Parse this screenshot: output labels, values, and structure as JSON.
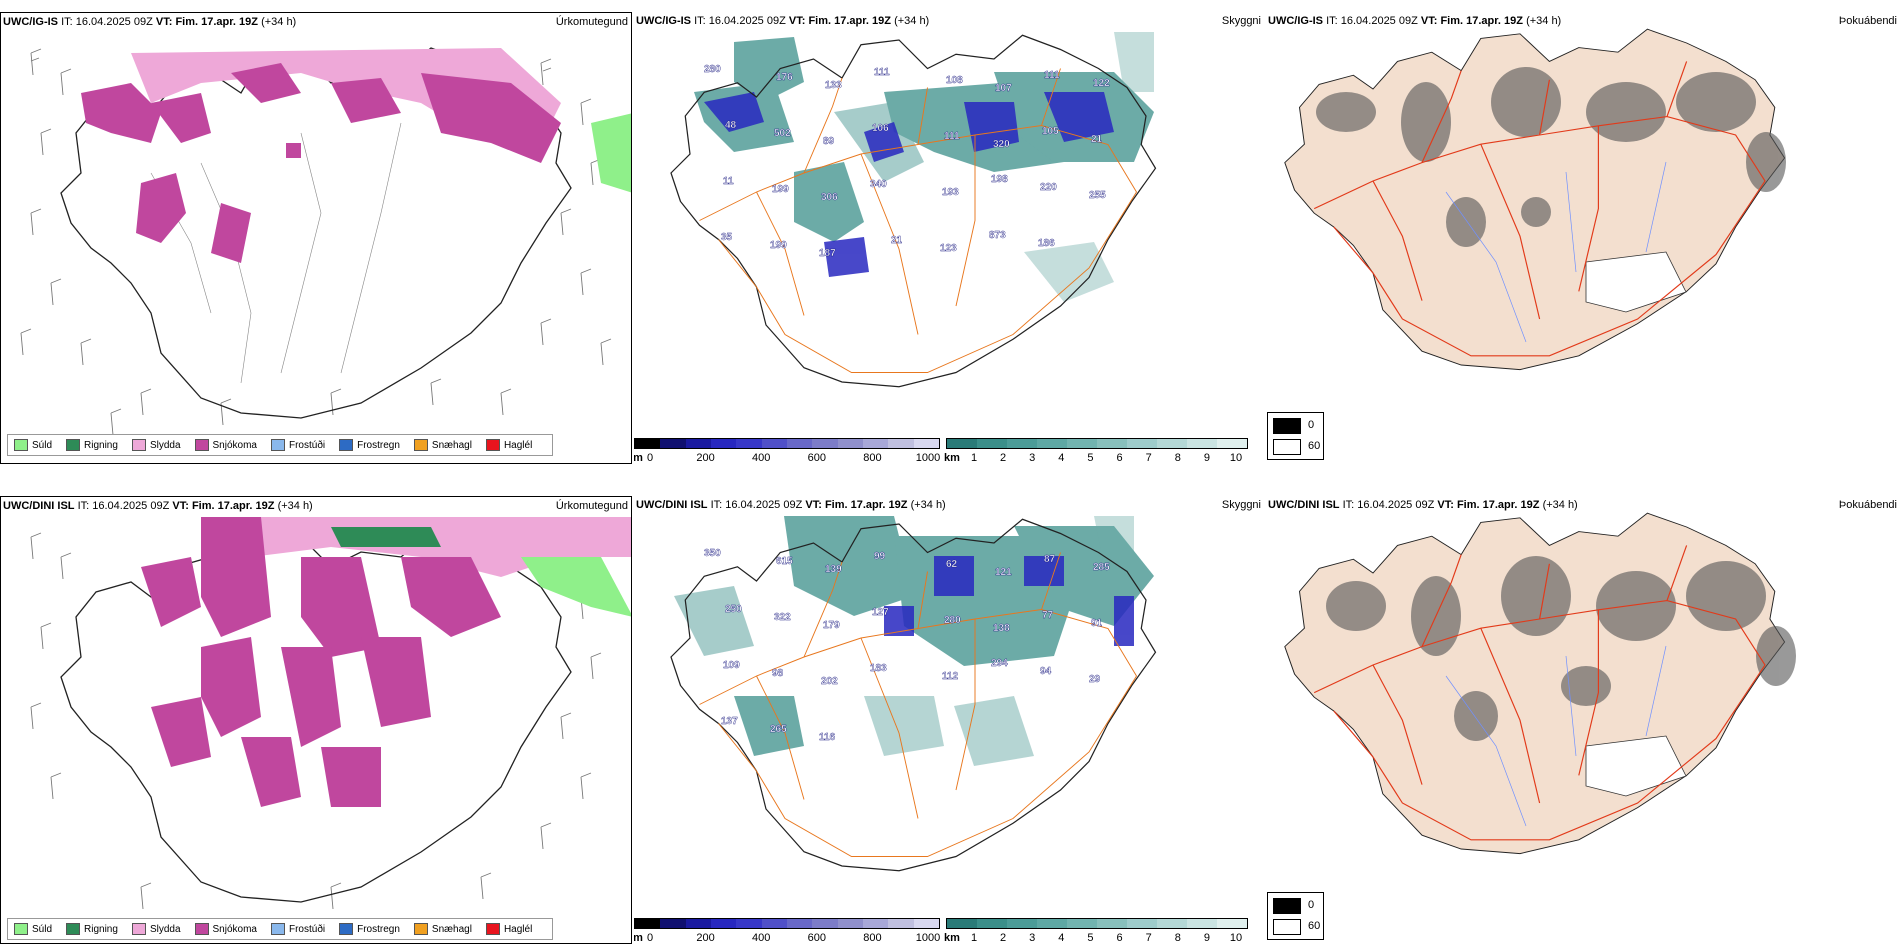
{
  "colors": {
    "pink_dark": "#c0479e",
    "pink_light": "#eea8d8",
    "green_light": "#8ff08a",
    "teal": "#3b8f8a",
    "orange_road": "#e8771e",
    "red_road": "#e23a1a",
    "land_beige": "#f3dfcf"
  },
  "panels": [
    {
      "model": "UWC/IG-IS",
      "it_label": "IT:",
      "it": "16.04.2025 09Z",
      "vt_label": "VT:",
      "vt": "Fim. 17.apr. 19Z",
      "lead": "(+34 h)",
      "title": "Úrkomutegund"
    },
    {
      "model": "UWC/IG-IS",
      "it_label": "IT:",
      "it": "16.04.2025 09Z",
      "vt_label": "VT:",
      "vt": "Fim. 17.apr. 19Z",
      "lead": "(+34 h)",
      "title": "Skyggni"
    },
    {
      "model": "UWC/IG-IS",
      "it_label": "IT:",
      "it": "16.04.2025 09Z",
      "vt_label": "VT:",
      "vt": "Fim. 17.apr. 19Z",
      "lead": "(+34 h)",
      "title": "Þokuábendi"
    },
    {
      "model": "UWC/DINI ISL",
      "it_label": "IT:",
      "it": "16.04.2025 09Z",
      "vt_label": "VT:",
      "vt": "Fim. 17.apr. 19Z",
      "lead": "(+34 h)",
      "title": "Úrkomutegund"
    },
    {
      "model": "UWC/DINI ISL",
      "it_label": "IT:",
      "it": "16.04.2025 09Z",
      "vt_label": "VT:",
      "vt": "Fim. 17.apr. 19Z",
      "lead": "(+34 h)",
      "title": "Skyggni"
    },
    {
      "model": "UWC/DINI ISL",
      "it_label": "IT:",
      "it": "16.04.2025 09Z",
      "vt_label": "VT:",
      "vt": "Fim. 17.apr. 19Z",
      "lead": "(+34 h)",
      "title": "Þokuábendi"
    }
  ],
  "precip_legend": [
    {
      "label": "Súld",
      "color": "#8ff08a"
    },
    {
      "label": "Rigning",
      "color": "#2e8b57"
    },
    {
      "label": "Slydda",
      "color": "#eea8d8"
    },
    {
      "label": "Snjókoma",
      "color": "#c0479e"
    },
    {
      "label": "Frostúði",
      "color": "#8ab8ec"
    },
    {
      "label": "Frostregn",
      "color": "#2d6bc4"
    },
    {
      "label": "Snæhagl",
      "color": "#f0a020"
    },
    {
      "label": "Haglél",
      "color": "#e8141e"
    }
  ],
  "cloud_base_bar": {
    "unit": "m",
    "ticks": [
      "0",
      "200",
      "400",
      "600",
      "800",
      "1000"
    ],
    "colors": [
      "#000000",
      "#101070",
      "#1a1aa0",
      "#2828c0",
      "#3838c8",
      "#5050c8",
      "#6868c8",
      "#7c7cc8",
      "#9090cc",
      "#a8a8d8",
      "#c0c0e0",
      "#d8d8f0"
    ]
  },
  "visibility_bar": {
    "unit": "km",
    "ticks": [
      "1",
      "2",
      "3",
      "4",
      "5",
      "6",
      "7",
      "8",
      "9",
      "10"
    ],
    "colors": [
      "#2a7b78",
      "#3b8f8a",
      "#4c9c98",
      "#5ea8a4",
      "#72b4b0",
      "#88c0bc",
      "#9ecccb",
      "#b4d8d6",
      "#cae4e2",
      "#e0f0ee"
    ]
  },
  "fog_legend": {
    "top": "0",
    "bottom": "60"
  },
  "cloud_labels_top": [
    "280",
    "176",
    "133",
    "111",
    "108",
    "107",
    "111",
    "122",
    "48",
    "502",
    "89",
    "106",
    "111",
    "320",
    "105",
    "21",
    "11",
    "199",
    "306",
    "340",
    "193",
    "198",
    "220",
    "255",
    "35",
    "199",
    "187",
    "21",
    "123",
    "873",
    "186"
  ],
  "cloud_labels_bottom": [
    "350",
    "615",
    "139",
    "99",
    "62",
    "121",
    "87",
    "285",
    "250",
    "322",
    "179",
    "127",
    "280",
    "138",
    "77",
    "91",
    "109",
    "98",
    "202",
    "183",
    "112",
    "294",
    "94",
    "29",
    "137",
    "265",
    "116"
  ]
}
